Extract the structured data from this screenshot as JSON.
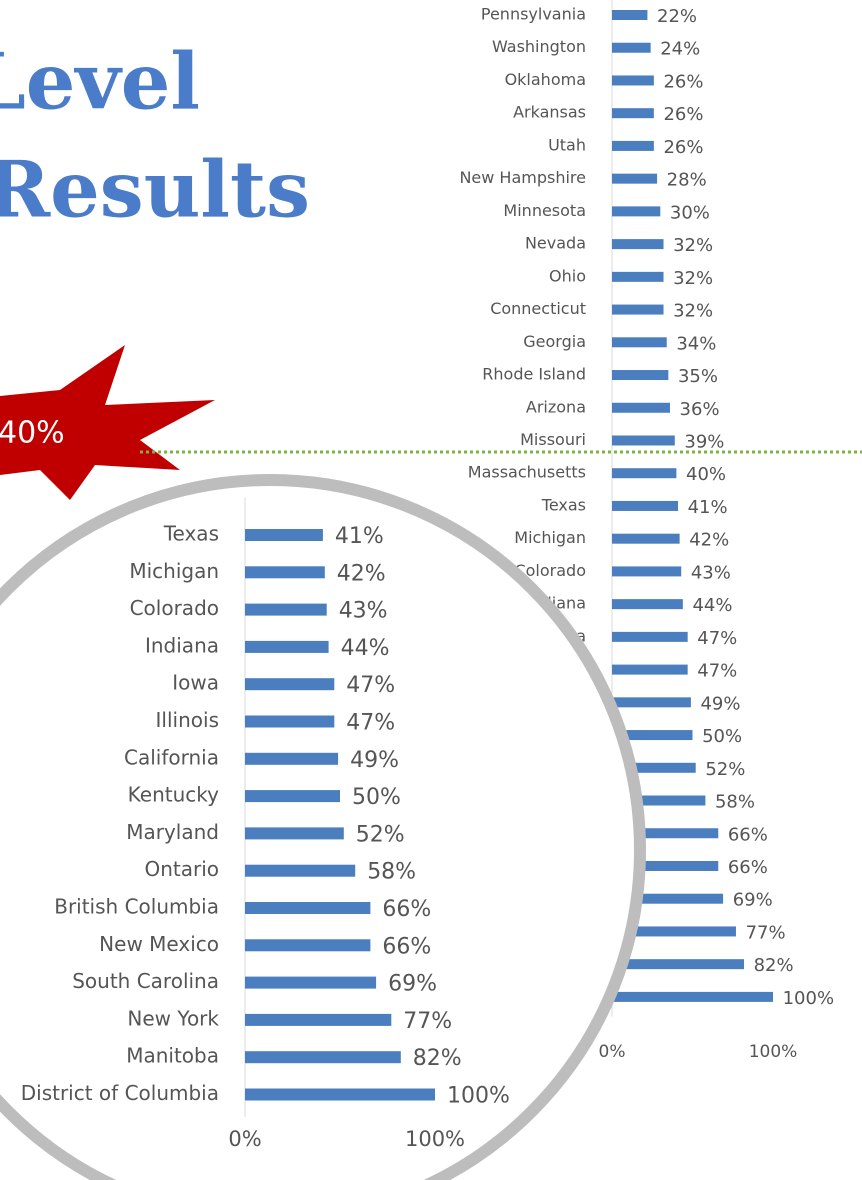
{
  "title_lines": [
    "Level",
    "Results"
  ],
  "callout": "40%",
  "chart_data": {
    "type": "barh",
    "categories": [
      "Pennsylvania",
      "Washington",
      "Oklahoma",
      "Arkansas",
      "Utah",
      "New Hampshire",
      "Minnesota",
      "Nevada",
      "Ohio",
      "Connecticut",
      "Georgia",
      "Rhode Island",
      "Arizona",
      "Missouri",
      "Massachusetts",
      "Texas",
      "Michigan",
      "Colorado",
      "Indiana",
      "Iowa",
      "Illinois",
      "California",
      "Kentucky",
      "Maryland",
      "Ontario",
      "British Columbia",
      "New Mexico",
      "South Carolina",
      "New York",
      "Manitoba",
      "District of Columbia"
    ],
    "values": [
      22,
      24,
      26,
      26,
      26,
      28,
      30,
      32,
      32,
      32,
      34,
      35,
      36,
      39,
      40,
      41,
      42,
      43,
      44,
      47,
      47,
      49,
      50,
      52,
      58,
      66,
      66,
      69,
      77,
      82,
      100
    ],
    "value_labels": [
      "22%",
      "24%",
      "26%",
      "26%",
      "26%",
      "28%",
      "30%",
      "32%",
      "32%",
      "32%",
      "34%",
      "35%",
      "36%",
      "39%",
      "40%",
      "41%",
      "42%",
      "43%",
      "44%",
      "47%",
      "47%",
      "49%",
      "50%",
      "52%",
      "58%",
      "66%",
      "66%",
      "69%",
      "77%",
      "82%",
      "100%"
    ],
    "color": "#4a7ebf",
    "xlim": [
      0,
      100
    ],
    "xticks": [
      {
        "value": 0,
        "label": "0%"
      },
      {
        "value": 100,
        "label": "100%"
      }
    ]
  }
}
